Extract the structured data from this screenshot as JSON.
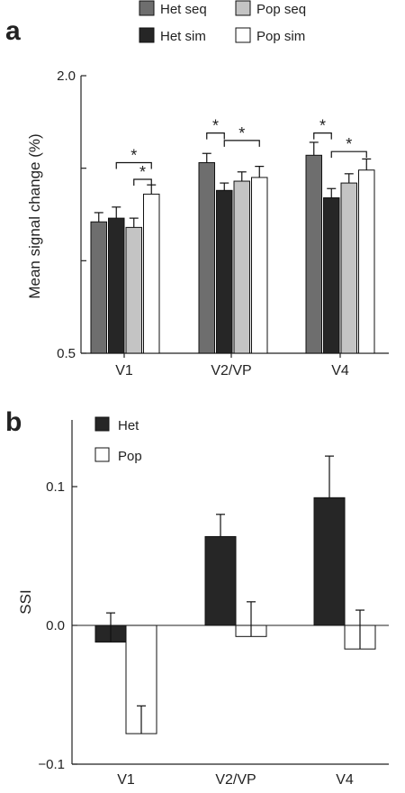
{
  "chart_data": [
    {
      "type": "bar",
      "panel_label": "a",
      "ylabel": "Mean signal change (%)",
      "ylim": [
        0.5,
        2.0
      ],
      "yticks": [
        "0.5",
        "2.0"
      ],
      "categories": [
        "V1",
        "V2/VP",
        "V4"
      ],
      "series": [
        {
          "name": "Het seq",
          "color": "#6e6e6e",
          "values": [
            1.21,
            1.53,
            1.57
          ],
          "errors": [
            0.05,
            0.05,
            0.07
          ]
        },
        {
          "name": "Het sim",
          "color": "#262626",
          "values": [
            1.23,
            1.38,
            1.34
          ],
          "errors": [
            0.06,
            0.04,
            0.05
          ]
        },
        {
          "name": "Pop seq",
          "color": "#c4c4c4",
          "values": [
            1.18,
            1.43,
            1.42
          ],
          "errors": [
            0.05,
            0.05,
            0.05
          ]
        },
        {
          "name": "Pop sim",
          "color": "#ffffff",
          "values": [
            1.36,
            1.45,
            1.49
          ],
          "errors": [
            0.05,
            0.06,
            0.06
          ]
        }
      ],
      "legend": [
        "Het seq",
        "Pop seq",
        "Het sim",
        "Pop sim"
      ],
      "significance": [
        {
          "category": 0,
          "from": 1,
          "to": 3,
          "label": "*"
        },
        {
          "category": 0,
          "from": 2,
          "to": 3,
          "label": "*"
        },
        {
          "category": 1,
          "from": 0,
          "to": 1,
          "label": "*"
        },
        {
          "category": 1,
          "from": 1,
          "to": 3,
          "label": "*"
        },
        {
          "category": 2,
          "from": 0,
          "to": 1,
          "label": "*"
        },
        {
          "category": 2,
          "from": 1,
          "to": 3,
          "label": "*"
        }
      ]
    },
    {
      "type": "bar",
      "panel_label": "b",
      "ylabel": "SSI",
      "ylim": [
        -0.1,
        0.15
      ],
      "yticks": [
        "−0.1",
        "0.0",
        "0.1"
      ],
      "ytick_values": [
        -0.1,
        0.0,
        0.1
      ],
      "categories": [
        "V1",
        "V2/VP",
        "V4"
      ],
      "series": [
        {
          "name": "Het",
          "color": "#262626",
          "values": [
            -0.012,
            0.064,
            0.092
          ],
          "errors": [
            0.021,
            0.016,
            0.03
          ]
        },
        {
          "name": "Pop",
          "color": "#ffffff",
          "values": [
            -0.078,
            -0.008,
            -0.017
          ],
          "errors": [
            0.02,
            0.025,
            0.028
          ]
        }
      ],
      "legend": [
        "Het",
        "Pop"
      ]
    }
  ]
}
